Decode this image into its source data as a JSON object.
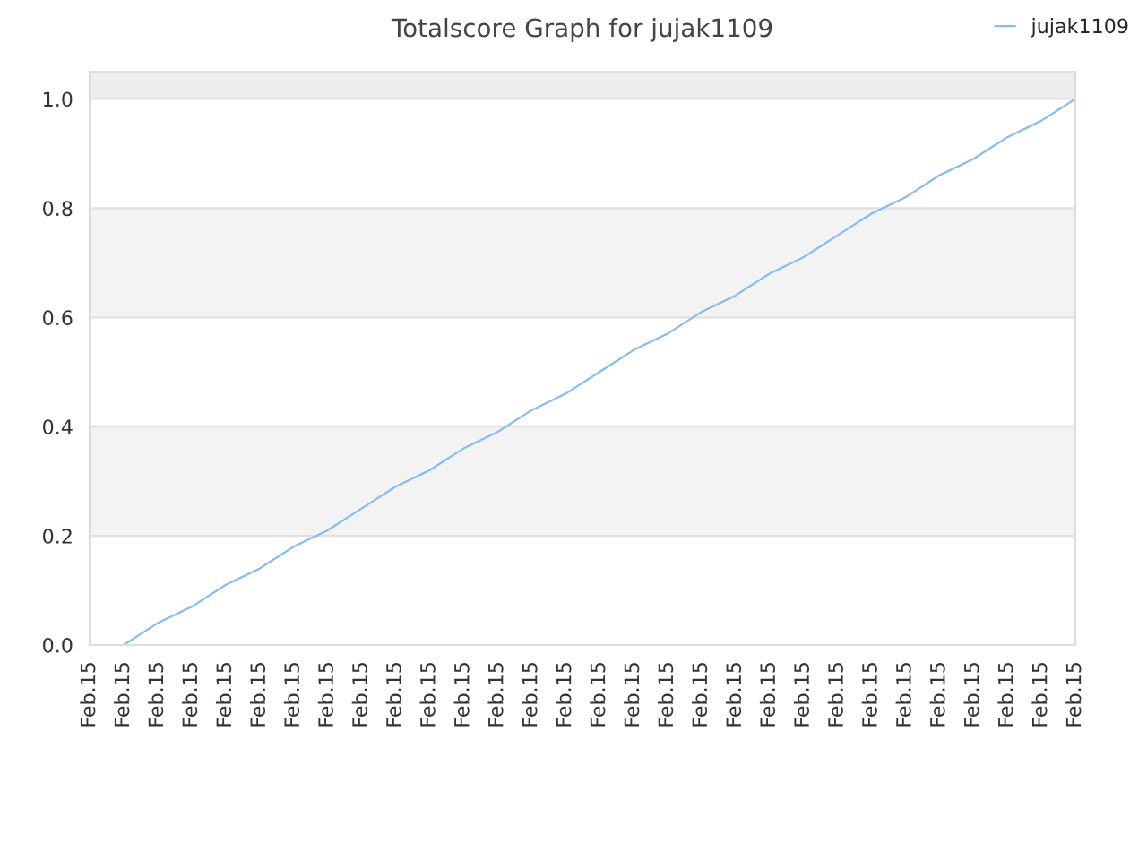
{
  "chart_data": {
    "type": "line",
    "title": "Totalscore Graph for jujak1109",
    "categories": [
      "Feb.15",
      "Feb.15",
      "Feb.15",
      "Feb.15",
      "Feb.15",
      "Feb.15",
      "Feb.15",
      "Feb.15",
      "Feb.15",
      "Feb.15",
      "Feb.15",
      "Feb.15",
      "Feb.15",
      "Feb.15",
      "Feb.15",
      "Feb.15",
      "Feb.15",
      "Feb.15",
      "Feb.15",
      "Feb.15",
      "Feb.15",
      "Feb.15",
      "Feb.15",
      "Feb.15",
      "Feb.15",
      "Feb.15",
      "Feb.15",
      "Feb.15",
      "Feb.15",
      "Feb.15"
    ],
    "series": [
      {
        "name": "jujak1109",
        "color": "#88bbf0",
        "values": [
          null,
          0,
          0.04,
          0.07,
          0.11,
          0.14,
          0.18,
          0.21,
          0.25,
          0.29,
          0.32,
          0.36,
          0.39,
          0.43,
          0.46,
          0.5,
          0.54,
          0.57,
          0.61,
          0.64,
          0.68,
          0.71,
          0.75,
          0.79,
          0.82,
          0.86,
          0.89,
          0.93,
          0.96,
          1
        ]
      }
    ],
    "ylim": [
      0,
      1.05
    ],
    "yticks": [
      {
        "value": 0,
        "label": "0.0"
      },
      {
        "value": 0.2,
        "label": "0.2"
      },
      {
        "value": 0.4,
        "label": "0.4"
      },
      {
        "value": 0.6,
        "label": "0.6"
      },
      {
        "value": 0.8,
        "label": "0.8"
      },
      {
        "value": 1,
        "label": "1.0"
      }
    ],
    "bands": [
      {
        "axis": "y",
        "from": 0.2,
        "to": 0.4,
        "color": "#f3f3f3"
      },
      {
        "axis": "y",
        "from": 0.6,
        "to": 0.8,
        "color": "#f3f3f3"
      },
      {
        "axis": "y",
        "from": 1.0,
        "to": 1.05,
        "color": "#eeeeee"
      }
    ],
    "grid": "y",
    "legend": "top right",
    "marker": "none",
    "line_style": "solid"
  }
}
